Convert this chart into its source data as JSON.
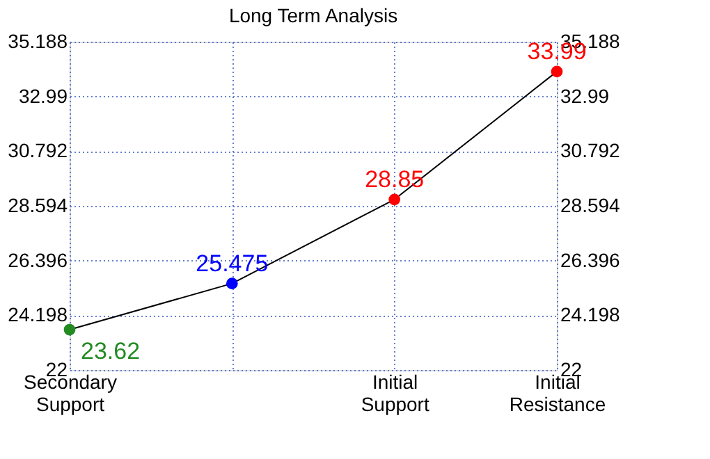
{
  "chart_data": {
    "type": "line",
    "title": "Long Term Analysis",
    "categories": [
      "Secondary Support",
      null,
      "Initial Support",
      "Initial Resistance"
    ],
    "values": [
      23.62,
      25.475,
      28.85,
      33.99
    ],
    "colors": [
      "#228b22",
      "#0000ff",
      "#ff0000",
      "#ff0000"
    ],
    "ylim": [
      22,
      35.188
    ],
    "yticks": [
      22,
      24.198,
      26.396,
      28.594,
      30.792,
      32.99,
      35.188
    ],
    "y2lim": [
      22,
      35.188
    ],
    "y2ticks": [
      22,
      24.198,
      26.396,
      28.594,
      30.792,
      32.99,
      35.188
    ],
    "grid": true,
    "data_labels": true,
    "marker": "circle",
    "line_style": "solid"
  }
}
